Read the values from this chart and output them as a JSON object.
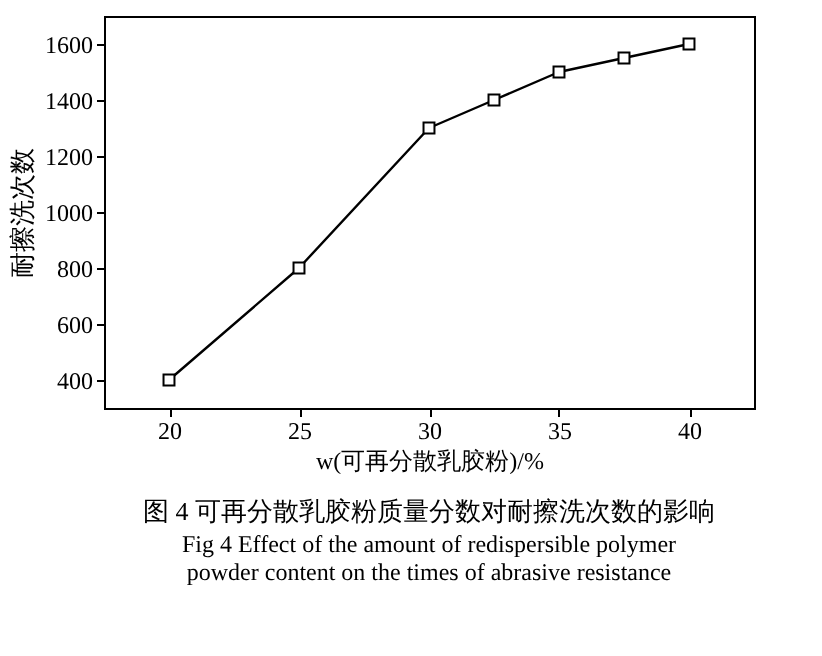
{
  "chart_data": {
    "type": "line",
    "xlabel": "w(可再分散乳胶粉)/%",
    "ylabel": "耐擦洗次数",
    "x": [
      20,
      25,
      30,
      32.5,
      35,
      37.5,
      40
    ],
    "series": [
      {
        "color": "#000000",
        "values": [
          400,
          800,
          1300,
          1400,
          1500,
          1550,
          1600
        ]
      }
    ],
    "xlim": [
      17.5,
      42.5
    ],
    "xticks": [
      20,
      25,
      30,
      35,
      40
    ],
    "ylim": [
      300,
      1700
    ],
    "yticks": [
      400,
      600,
      800,
      1000,
      1200,
      1400,
      1600
    ],
    "marker": "square",
    "line_style": "solid",
    "grid": false,
    "legend": false,
    "annotations": [
      "图 4  可再分散乳胶粉质量分数对耐擦洗次数的影响",
      "Fig 4   Effect of the amount of redispersible polymer powder content on the times of abrasive resistance"
    ]
  }
}
